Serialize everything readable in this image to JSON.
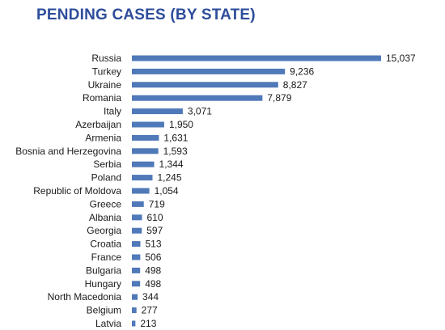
{
  "chart_data": {
    "type": "bar",
    "orientation": "horizontal",
    "title": "PENDING CASES (BY STATE)",
    "xlabel": "",
    "ylabel": "",
    "bar_color": "#4f79b8",
    "title_color": "#2e4d9b",
    "data_labels": true,
    "grid": false,
    "categories": [
      "Russia",
      "Turkey",
      "Ukraine",
      "Romania",
      "Italy",
      "Azerbaijan",
      "Armenia",
      "Bosnia and Herzegovina",
      "Serbia",
      "Poland",
      "Republic of Moldova",
      "Greece",
      "Albania",
      "Georgia",
      "Croatia",
      "France",
      "Bulgaria",
      "Hungary",
      "North Macedonia",
      "Belgium",
      "Latvia"
    ],
    "values": [
      15037,
      9236,
      8827,
      7879,
      3071,
      1950,
      1631,
      1593,
      1344,
      1245,
      1054,
      719,
      610,
      597,
      513,
      506,
      498,
      498,
      344,
      277,
      213
    ],
    "value_labels": [
      "15,037",
      "9,236",
      "8,827",
      "7,879",
      "3,071",
      "1,950",
      "1,631",
      "1,593",
      "1,344",
      "1,245",
      "1,054",
      "719",
      "610",
      "597",
      "513",
      "506",
      "498",
      "498",
      "344",
      "277",
      "213"
    ]
  }
}
